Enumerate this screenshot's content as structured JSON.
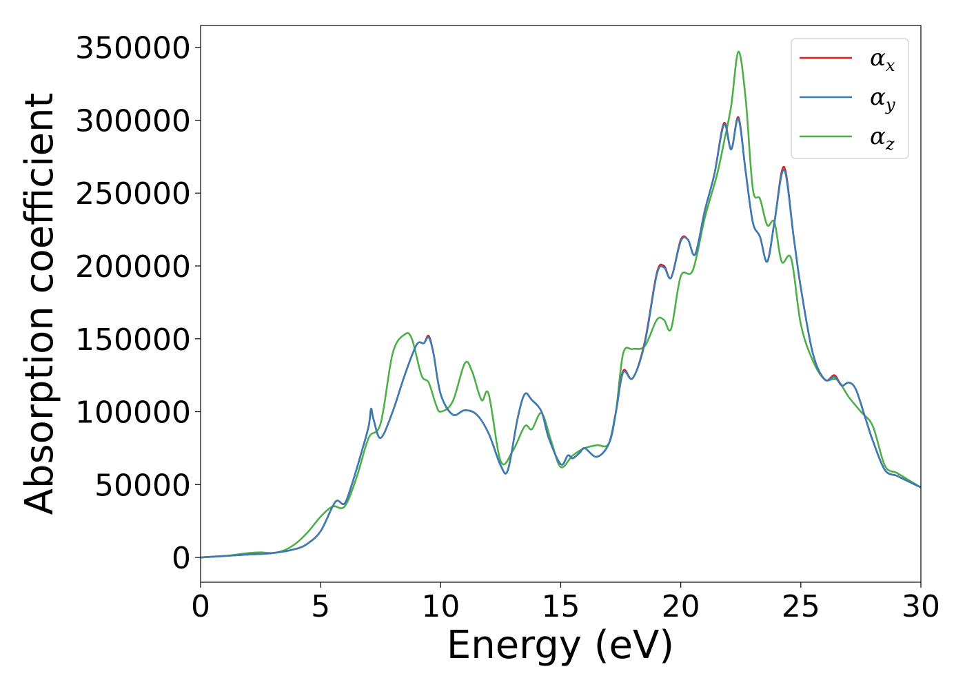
{
  "chart_data": {
    "type": "line",
    "xlabel": "Energy (eV)",
    "ylabel": "Absorption coefficient",
    "xlim": [
      0,
      30
    ],
    "ylim": [
      -17000,
      365000
    ],
    "xticks": [
      0,
      5,
      10,
      15,
      20,
      25,
      30
    ],
    "xtick_labels": [
      "0",
      "5",
      "10",
      "15",
      "20",
      "25",
      "30"
    ],
    "yticks": [
      0,
      50000,
      100000,
      150000,
      200000,
      250000,
      300000,
      350000
    ],
    "ytick_labels": [
      "0",
      "50000",
      "100000",
      "150000",
      "200000",
      "250000",
      "300000",
      "350000"
    ],
    "grid": false,
    "legend_position": "top-right",
    "series": [
      {
        "name": "α_x",
        "symbol": "α",
        "subscript": "x",
        "color": "#e41a1c",
        "x": [
          0,
          1,
          2,
          3,
          4,
          4.5,
          5,
          5.5,
          5.7,
          6,
          6.3,
          6.7,
          7,
          7.1,
          7.2,
          7.5,
          8,
          8.5,
          9,
          9.3,
          9.5,
          9.7,
          10,
          10.5,
          11,
          11.5,
          12,
          12.5,
          12.8,
          13.2,
          13.5,
          13.8,
          14.2,
          14.5,
          15,
          15.3,
          15.5,
          15.8,
          16,
          16.5,
          17,
          17.3,
          17.6,
          18,
          18.5,
          19,
          19.3,
          19.6,
          20,
          20.3,
          20.6,
          21,
          21.4,
          21.8,
          22.1,
          22.4,
          22.7,
          23,
          23.3,
          23.6,
          23.9,
          24.3,
          24.7,
          25,
          25.5,
          26,
          26.4,
          26.7,
          27,
          27.3,
          27.7,
          28,
          28.5,
          29,
          29.5,
          30
        ],
        "y": [
          0,
          1000,
          2000,
          3000,
          6000,
          10000,
          18000,
          35000,
          39000,
          37000,
          50000,
          72000,
          90000,
          102000,
          95000,
          82000,
          100000,
          125000,
          146000,
          147000,
          152000,
          140000,
          112000,
          98000,
          101000,
          98000,
          85000,
          63000,
          60000,
          95000,
          112000,
          108000,
          100000,
          82000,
          64000,
          70000,
          68000,
          72000,
          75000,
          69000,
          78000,
          100000,
          128000,
          123000,
          148000,
          195000,
          200000,
          192000,
          218000,
          218000,
          208000,
          238000,
          263000,
          298000,
          280000,
          302000,
          265000,
          230000,
          220000,
          203000,
          230000,
          268000,
          220000,
          185000,
          140000,
          122000,
          125000,
          118000,
          120000,
          115000,
          95000,
          80000,
          60000,
          56000,
          52000,
          48000
        ]
      },
      {
        "name": "α_y",
        "symbol": "α",
        "subscript": "y",
        "color": "#377eb8",
        "x": [
          0,
          1,
          2,
          3,
          4,
          4.5,
          5,
          5.5,
          5.7,
          6,
          6.3,
          6.7,
          7,
          7.1,
          7.2,
          7.5,
          8,
          8.5,
          9,
          9.3,
          9.5,
          9.7,
          10,
          10.5,
          11,
          11.5,
          12,
          12.5,
          12.8,
          13.2,
          13.5,
          13.8,
          14.2,
          14.5,
          15,
          15.3,
          15.5,
          15.8,
          16,
          16.5,
          17,
          17.3,
          17.6,
          18,
          18.5,
          19,
          19.3,
          19.6,
          20,
          20.3,
          20.6,
          21,
          21.4,
          21.8,
          22.1,
          22.4,
          22.7,
          23,
          23.3,
          23.6,
          23.9,
          24.3,
          24.7,
          25,
          25.5,
          26,
          26.4,
          26.7,
          27,
          27.3,
          27.7,
          28,
          28.5,
          29,
          29.5,
          30
        ],
        "y": [
          0,
          1000,
          2000,
          3000,
          6000,
          10000,
          18000,
          35000,
          39000,
          37000,
          50000,
          72000,
          90000,
          102000,
          95000,
          82000,
          100000,
          125000,
          146000,
          147000,
          151000,
          140000,
          112000,
          98000,
          101000,
          98000,
          85000,
          63000,
          60000,
          95000,
          112000,
          108000,
          100000,
          82000,
          64000,
          70000,
          68000,
          72000,
          75000,
          69000,
          78000,
          100000,
          127000,
          123000,
          147000,
          194000,
          199000,
          192000,
          217000,
          218000,
          208000,
          238000,
          263000,
          297000,
          280000,
          301000,
          265000,
          230000,
          220000,
          203000,
          230000,
          266000,
          220000,
          185000,
          140000,
          122000,
          124000,
          118000,
          120000,
          115000,
          95000,
          80000,
          60000,
          56000,
          52000,
          48000
        ]
      },
      {
        "name": "α_z",
        "symbol": "α",
        "subscript": "z",
        "color": "#4daf4a",
        "x": [
          0,
          1,
          2,
          2.5,
          3,
          3.5,
          4,
          4.5,
          5,
          5.5,
          6,
          6.5,
          7,
          7.5,
          8,
          8.5,
          8.8,
          9.2,
          9.5,
          9.8,
          10,
          10.5,
          11,
          11.3,
          11.7,
          12,
          12.5,
          13,
          13.5,
          13.8,
          14.2,
          14.6,
          15,
          15.5,
          16,
          16.5,
          17,
          17.3,
          17.6,
          18,
          18.5,
          19,
          19.3,
          19.6,
          20,
          20.5,
          21,
          21.5,
          21.8,
          22.1,
          22.4,
          22.7,
          23,
          23.3,
          23.6,
          23.9,
          24.2,
          24.6,
          25,
          25.5,
          26,
          26.5,
          27,
          27.5,
          28,
          28.5,
          29,
          29.5,
          30
        ],
        "y": [
          0,
          1000,
          3000,
          3500,
          3000,
          5000,
          10000,
          18000,
          28000,
          35000,
          35000,
          55000,
          82000,
          92000,
          140000,
          153000,
          150000,
          125000,
          120000,
          105000,
          100000,
          107000,
          133000,
          128000,
          108000,
          112000,
          66000,
          73000,
          90000,
          88000,
          99000,
          80000,
          62000,
          70000,
          75000,
          77000,
          78000,
          100000,
          140000,
          143000,
          145000,
          163000,
          163000,
          157000,
          193000,
          197000,
          233000,
          262000,
          285000,
          310000,
          347000,
          315000,
          253000,
          246000,
          228000,
          230000,
          203000,
          205000,
          160000,
          135000,
          122000,
          122000,
          110000,
          100000,
          90000,
          63000,
          58000,
          53000,
          48000
        ]
      }
    ]
  }
}
